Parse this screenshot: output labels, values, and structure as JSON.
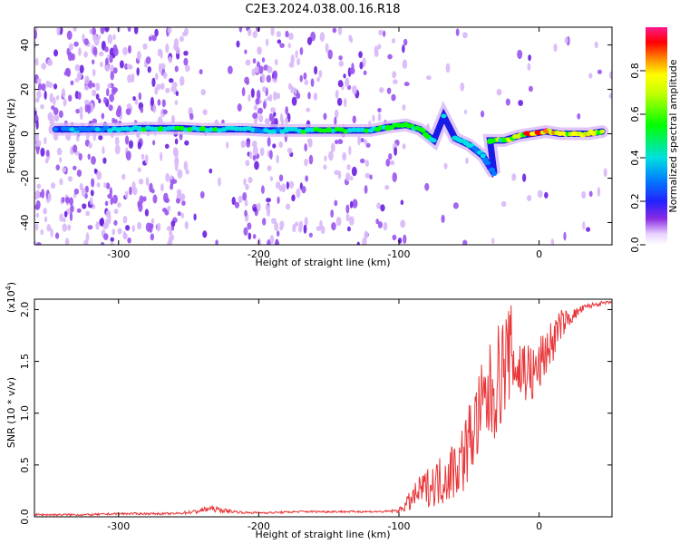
{
  "title": "C2E3.2024.038.00.16.R18",
  "colors": {
    "snr_line": "#e8373a",
    "spectrogram_ridge": "#1a1ae6",
    "speckle": "#7a2fe0"
  },
  "chart_data": [
    {
      "type": "heatmap",
      "xlabel": "Height of straight line (km)",
      "ylabel": "Frequency (Hz)",
      "xlim": [
        -360,
        52
      ],
      "ylim": [
        -50,
        48
      ],
      "x_ticks": [
        -300,
        -200,
        -100,
        0
      ],
      "x_tick_labels": [
        "-300",
        "-200",
        "-100",
        "0"
      ],
      "y_ticks": [
        -40,
        -20,
        0,
        20,
        40
      ],
      "y_tick_labels": [
        "-40",
        "-20",
        "0",
        "20",
        "40"
      ],
      "colorbar": {
        "label": "Normalized spectral amplitude",
        "range": [
          0,
          1
        ],
        "ticks": [
          0,
          0.2,
          0.4,
          0.6,
          0.8
        ],
        "tick_labels": [
          "0.0",
          "0.2",
          "0.4",
          "0.6",
          "0.8"
        ],
        "colormap": "rainbow (white-violet-blue-cyan-green-yellow-red-magenta)"
      },
      "ridge": [
        {
          "x": -345,
          "freq": 2,
          "amp": 0.3
        },
        {
          "x": -330,
          "freq": 2,
          "amp": 0.35
        },
        {
          "x": -315,
          "freq": 2,
          "amp": 0.4
        },
        {
          "x": -300,
          "freq": 2,
          "amp": 0.45
        },
        {
          "x": -285,
          "freq": 2.5,
          "amp": 0.5
        },
        {
          "x": -270,
          "freq": 2.5,
          "amp": 0.55
        },
        {
          "x": -255,
          "freq": 2.5,
          "amp": 0.55
        },
        {
          "x": -240,
          "freq": 2,
          "amp": 0.55
        },
        {
          "x": -225,
          "freq": 2,
          "amp": 0.5
        },
        {
          "x": -210,
          "freq": 2,
          "amp": 0.45
        },
        {
          "x": -195,
          "freq": 1.5,
          "amp": 0.45
        },
        {
          "x": -180,
          "freq": 1.5,
          "amp": 0.45
        },
        {
          "x": -165,
          "freq": 1.5,
          "amp": 0.5
        },
        {
          "x": -150,
          "freq": 1.5,
          "amp": 0.55
        },
        {
          "x": -135,
          "freq": 1.5,
          "amp": 0.5
        },
        {
          "x": -120,
          "freq": 1.5,
          "amp": 0.5
        },
        {
          "x": -108,
          "freq": 3,
          "amp": 0.55
        },
        {
          "x": -95,
          "freq": 4,
          "amp": 0.6
        },
        {
          "x": -85,
          "freq": 2,
          "amp": 0.55
        },
        {
          "x": -75,
          "freq": -3,
          "amp": 0.5
        },
        {
          "x": -68,
          "freq": 8,
          "amp": 0.45
        },
        {
          "x": -60,
          "freq": -2,
          "amp": 0.5
        },
        {
          "x": -50,
          "freq": -5,
          "amp": 0.45
        },
        {
          "x": -40,
          "freq": -10,
          "amp": 0.4
        },
        {
          "x": -32,
          "freq": -18,
          "amp": 0.3
        },
        {
          "x": -35,
          "freq": -3,
          "amp": 0.6
        },
        {
          "x": -25,
          "freq": -3,
          "amp": 0.65
        },
        {
          "x": -15,
          "freq": -1,
          "amp": 0.75
        },
        {
          "x": -5,
          "freq": 0,
          "amp": 0.85
        },
        {
          "x": 5,
          "freq": 1,
          "amp": 0.9
        },
        {
          "x": 15,
          "freq": 0,
          "amp": 0.85
        },
        {
          "x": 25,
          "freq": 0,
          "amp": 0.8
        },
        {
          "x": 35,
          "freq": 0,
          "amp": 0.75
        },
        {
          "x": 45,
          "freq": 1,
          "amp": 0.7
        }
      ]
    },
    {
      "type": "line",
      "xlabel": "Height of straight line (km)",
      "ylabel": "SNR (10 * v/v)",
      "y_multiplier_label": "(x10",
      "y_multiplier_exp": "4",
      "xlim": [
        -360,
        52
      ],
      "ylim": [
        0,
        2.1
      ],
      "x_ticks": [
        -300,
        -200,
        -100,
        0
      ],
      "x_tick_labels": [
        "-300",
        "-200",
        "-100",
        "0"
      ],
      "y_ticks": [
        0,
        0.5,
        1.0,
        1.5,
        2.0
      ],
      "y_tick_labels": [
        "0.0",
        "0.5",
        "1.0",
        "1.5",
        "2.0"
      ],
      "series": [
        {
          "x": [
            -360,
            -340,
            -320,
            -300,
            -280,
            -260,
            -245,
            -235,
            -225,
            -210,
            -190,
            -170,
            -150,
            -130,
            -110,
            -100,
            -92,
            -85,
            -78,
            -70,
            -62,
            -55,
            -48,
            -42,
            -36,
            -30,
            -24,
            -20,
            -15,
            -10,
            -5,
            0,
            5,
            10,
            15,
            20,
            25,
            30,
            35,
            40,
            45,
            52
          ],
          "y": [
            0.02,
            0.02,
            0.02,
            0.03,
            0.03,
            0.03,
            0.05,
            0.08,
            0.06,
            0.04,
            0.04,
            0.05,
            0.05,
            0.05,
            0.05,
            0.06,
            0.15,
            0.25,
            0.3,
            0.35,
            0.45,
            0.55,
            0.8,
            1.0,
            1.15,
            1.3,
            1.5,
            1.6,
            1.4,
            1.45,
            1.35,
            1.45,
            1.6,
            1.7,
            1.85,
            1.9,
            1.95,
            2.0,
            2.03,
            2.05,
            2.06,
            2.07
          ],
          "jitter": [
            0.01,
            0.01,
            0.01,
            0.01,
            0.01,
            0.01,
            0.02,
            0.03,
            0.02,
            0.01,
            0.01,
            0.01,
            0.01,
            0.01,
            0.01,
            0.02,
            0.1,
            0.15,
            0.2,
            0.25,
            0.3,
            0.35,
            0.4,
            0.45,
            0.5,
            0.55,
            0.5,
            0.45,
            0.4,
            0.35,
            0.3,
            0.28,
            0.25,
            0.22,
            0.15,
            0.1,
            0.06,
            0.04,
            0.03,
            0.02,
            0.02,
            0.01
          ]
        }
      ]
    }
  ]
}
